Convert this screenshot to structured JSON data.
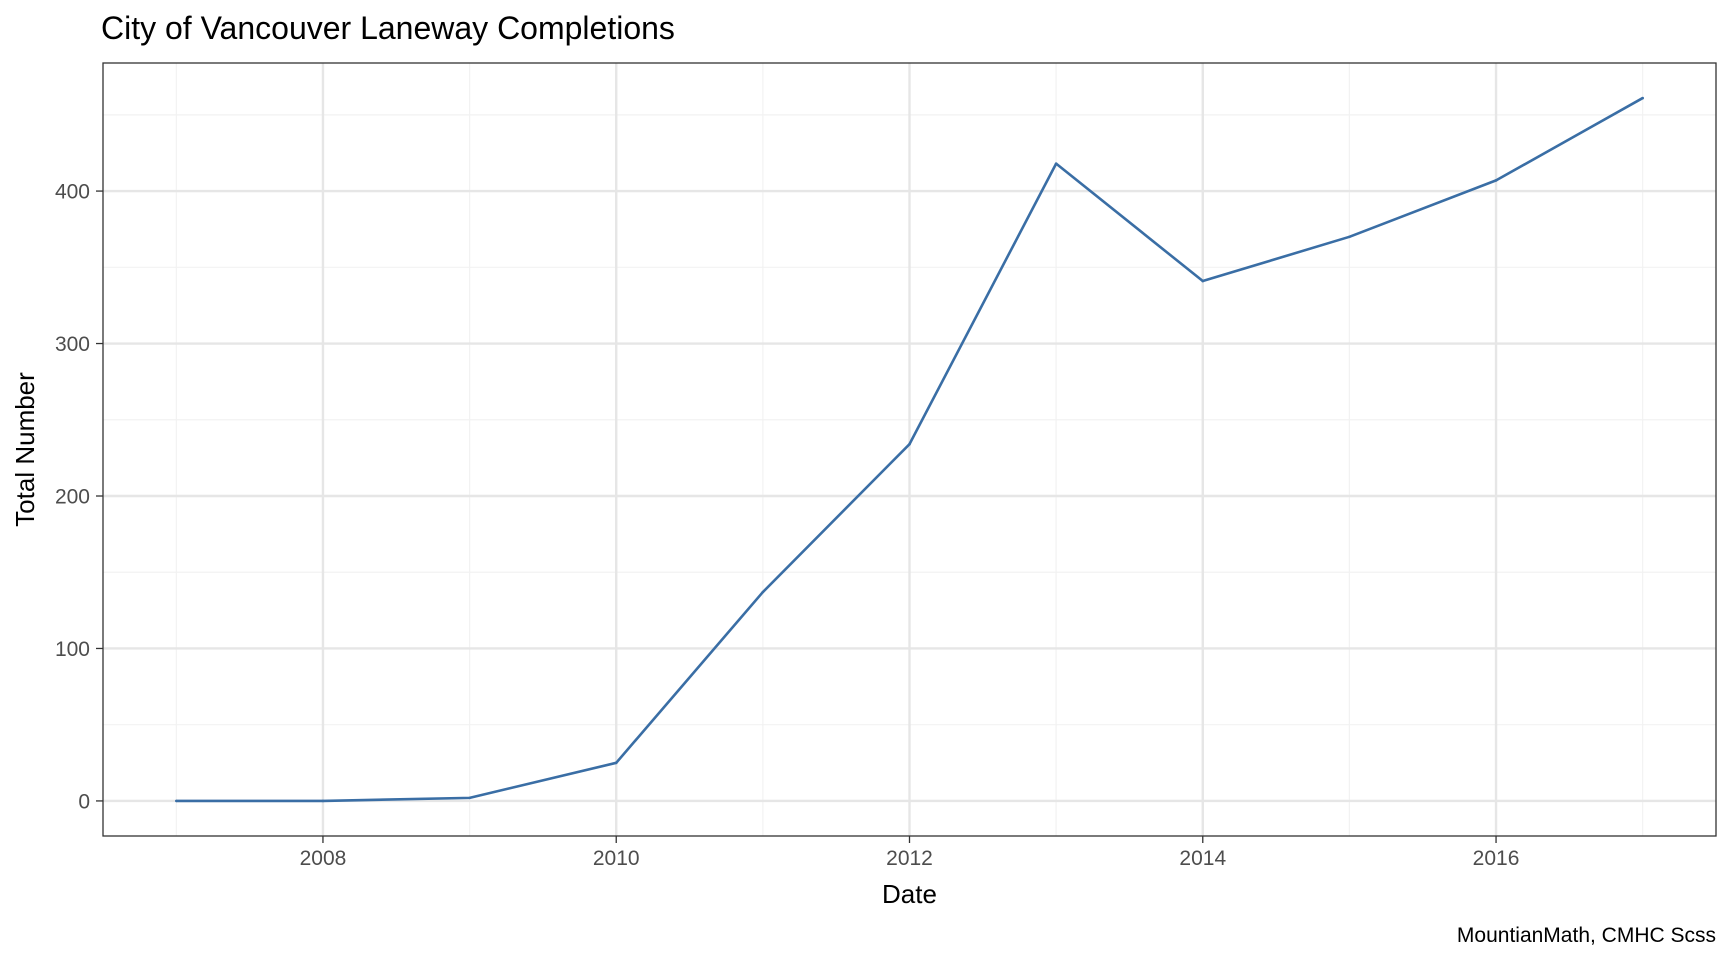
{
  "chart_data": {
    "type": "line",
    "title": "City of Vancouver Laneway Completions",
    "xlabel": "Date",
    "ylabel": "Total Number",
    "caption": "MountianMath, CMHC Scss",
    "x": [
      2007,
      2008,
      2009,
      2010,
      2011,
      2012,
      2013,
      2014,
      2015,
      2016,
      2017
    ],
    "series": [
      {
        "values": [
          0,
          0,
          2,
          25,
          137,
          234,
          418,
          341,
          370,
          407,
          461
        ]
      }
    ],
    "xlim": [
      2006.5,
      2017.5
    ],
    "ylim": [
      -23,
      484
    ],
    "x_major_ticks": [
      2008,
      2010,
      2012,
      2014,
      2016
    ],
    "x_minor_ticks": [
      2007,
      2009,
      2011,
      2013,
      2015,
      2017
    ],
    "y_major_ticks": [
      0,
      100,
      200,
      300,
      400
    ],
    "y_minor_ticks": [
      50,
      150,
      250,
      350,
      450
    ],
    "x_tick_labels": [
      "2008",
      "2010",
      "2012",
      "2014",
      "2016"
    ],
    "y_tick_labels": [
      "0",
      "100",
      "200",
      "300",
      "400"
    ],
    "grid": true,
    "legend": "none",
    "colors": {
      "line": "#3a6ea5",
      "grid_major": "#e6e6e6",
      "grid_minor": "#f2f2f2",
      "panel_border": "#333333",
      "tick_text": "#4d4d4d"
    }
  }
}
